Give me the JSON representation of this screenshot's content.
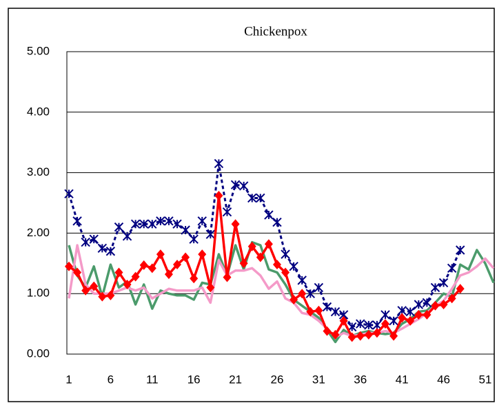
{
  "chart_data": {
    "type": "line",
    "title": "Chickenpox",
    "categories": [
      1,
      null,
      null,
      null,
      null,
      6,
      null,
      null,
      null,
      null,
      11,
      null,
      null,
      null,
      null,
      16,
      null,
      null,
      null,
      null,
      21,
      null,
      null,
      null,
      null,
      26,
      null,
      null,
      null,
      null,
      31,
      null,
      null,
      null,
      null,
      36,
      null,
      null,
      null,
      null,
      41,
      null,
      null,
      null,
      null,
      46,
      null,
      null,
      null,
      null,
      51,
      null
    ],
    "ylim": [
      0,
      5
    ],
    "yticks": [
      {
        "value": 0,
        "label": "0.00"
      },
      {
        "value": 1,
        "label": "1.00"
      },
      {
        "value": 2,
        "label": "2.00"
      },
      {
        "value": 3,
        "label": "3.00"
      },
      {
        "value": 4,
        "label": "4.00"
      },
      {
        "value": 5,
        "label": "5.00"
      }
    ],
    "grid": true,
    "series": [
      {
        "color": "#4b9b6b",
        "marker": "none",
        "dash": false,
        "values": [
          1.8,
          1.3,
          1.1,
          1.45,
          0.95,
          1.48,
          1.1,
          1.2,
          0.82,
          1.15,
          0.75,
          1.05,
          1.0,
          0.97,
          0.97,
          0.9,
          1.18,
          1.15,
          1.65,
          1.3,
          1.8,
          1.4,
          1.85,
          1.8,
          1.4,
          1.35,
          1.15,
          0.9,
          0.8,
          0.7,
          0.6,
          0.4,
          0.2,
          0.4,
          0.3,
          0.35,
          0.38,
          0.35,
          0.33,
          0.35,
          0.5,
          0.58,
          0.7,
          0.72,
          0.85,
          1.0,
          0.95,
          1.48,
          1.4,
          1.72,
          1.5,
          1.18
        ]
      },
      {
        "color": "#f49ac8",
        "marker": "none",
        "dash": false,
        "values": [
          0.92,
          1.8,
          1.15,
          1.0,
          1.0,
          1.0,
          1.05,
          1.1,
          1.05,
          1.1,
          0.92,
          1.0,
          1.08,
          1.05,
          1.05,
          1.05,
          1.1,
          0.85,
          1.55,
          1.3,
          1.38,
          1.38,
          1.42,
          1.3,
          1.08,
          1.2,
          0.92,
          0.85,
          0.68,
          0.65,
          0.55,
          0.42,
          0.28,
          0.35,
          0.3,
          0.32,
          0.35,
          0.35,
          0.38,
          0.35,
          0.42,
          0.5,
          0.58,
          0.68,
          0.8,
          0.88,
          1.08,
          1.3,
          1.35,
          1.45,
          1.58,
          1.42
        ]
      },
      {
        "color": "#000080",
        "marker": "asterisk",
        "dash": true,
        "values": [
          2.65,
          2.2,
          1.85,
          1.9,
          1.75,
          1.7,
          2.1,
          1.95,
          2.15,
          2.15,
          2.15,
          2.2,
          2.2,
          2.15,
          2.05,
          1.9,
          2.2,
          1.98,
          3.15,
          2.35,
          2.8,
          2.78,
          2.58,
          2.58,
          2.3,
          2.18,
          1.65,
          1.45,
          1.22,
          1.0,
          1.1,
          0.78,
          0.7,
          0.65,
          0.45,
          0.5,
          0.48,
          0.48,
          0.65,
          0.55,
          0.72,
          0.7,
          0.82,
          0.85,
          1.1,
          1.18,
          1.42,
          1.72,
          null,
          null,
          null,
          null
        ]
      },
      {
        "color": "#ff0000",
        "marker": "diamond",
        "dash": false,
        "values": [
          1.45,
          1.35,
          1.05,
          1.12,
          0.95,
          0.97,
          1.35,
          1.15,
          1.28,
          1.47,
          1.42,
          1.65,
          1.32,
          1.48,
          1.6,
          1.25,
          1.65,
          1.1,
          2.62,
          1.27,
          2.15,
          1.5,
          1.78,
          1.6,
          1.82,
          1.48,
          1.35,
          0.9,
          1.0,
          0.7,
          0.72,
          0.38,
          0.32,
          0.55,
          0.28,
          0.3,
          0.32,
          0.35,
          0.5,
          0.3,
          0.6,
          0.55,
          0.65,
          0.65,
          0.8,
          0.82,
          0.92,
          1.08,
          null,
          null,
          null,
          null
        ]
      }
    ]
  }
}
